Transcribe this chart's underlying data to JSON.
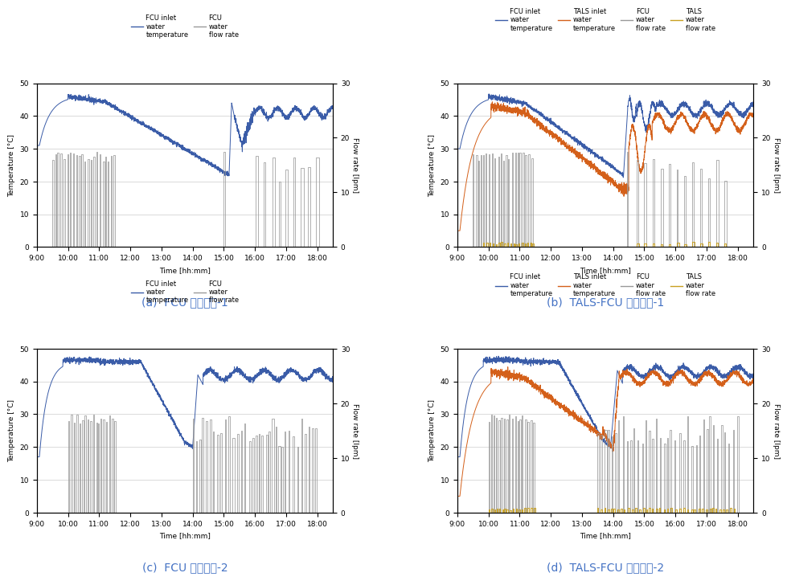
{
  "subplots": [
    {
      "title": "(a)  FCU 단독운전-1",
      "legend": [
        "FCU inlet\nwater\ntemperature",
        "FCU\nwater\nflow rate"
      ],
      "legend_colors": [
        "#3a5ca8",
        "#999999"
      ],
      "xlim": [
        0,
        570
      ],
      "ylim_left": [
        0,
        50
      ],
      "ylim_right": [
        0,
        30
      ],
      "xtick_labels": [
        "9:00",
        "10:00",
        "11:00",
        "12:00",
        "13:00",
        "14:00",
        "15:00",
        "16:00",
        "17:00",
        "18:00"
      ],
      "xtick_positions": [
        0,
        60,
        120,
        180,
        240,
        300,
        360,
        420,
        480,
        540
      ],
      "ytick_left": [
        0,
        10,
        20,
        30,
        40,
        50
      ],
      "ytick_right": [
        0,
        10,
        20,
        30
      ],
      "temp_color": "#3a5ca8",
      "flow_color": "#999999",
      "has_tals": false
    },
    {
      "title": "(b)  TALS-FCU 병용운전-1",
      "legend": [
        "FCU inlet\nwater\ntemperature",
        "TALS inlet\nwater\ntemperature",
        "FCU\nwater\nflow rate",
        "TALS\nwater\nflow rate"
      ],
      "legend_colors": [
        "#3a5ca8",
        "#d4601a",
        "#999999",
        "#c8a020"
      ],
      "xlim": [
        0,
        570
      ],
      "ylim_left": [
        0,
        50
      ],
      "ylim_right": [
        0,
        30
      ],
      "xtick_labels": [
        "9:00",
        "10:00",
        "11:00",
        "12:00",
        "13:00",
        "14:00",
        "15:00",
        "16:00",
        "17:00",
        "18:00"
      ],
      "xtick_positions": [
        0,
        60,
        120,
        180,
        240,
        300,
        360,
        420,
        480,
        540
      ],
      "ytick_left": [
        0,
        10,
        20,
        30,
        40,
        50
      ],
      "ytick_right": [
        0,
        10,
        20,
        30
      ],
      "temp_color": "#3a5ca8",
      "flow_color": "#999999",
      "tals_temp_color": "#d4601a",
      "tals_flow_color": "#c8a020",
      "has_tals": true
    },
    {
      "title": "(c)  FCU 단독운전-2",
      "legend": [
        "FCU inlet\nwater\ntemperature",
        "FCU\nwater\nflow rate"
      ],
      "legend_colors": [
        "#3a5ca8",
        "#999999"
      ],
      "xlim": [
        0,
        570
      ],
      "ylim_left": [
        0,
        50
      ],
      "ylim_right": [
        0,
        30
      ],
      "xtick_labels": [
        "9:00",
        "10:00",
        "11:00",
        "12:00",
        "13:00",
        "14:00",
        "15:00",
        "16:00",
        "17:00",
        "18:00"
      ],
      "xtick_positions": [
        0,
        60,
        120,
        180,
        240,
        300,
        360,
        420,
        480,
        540
      ],
      "ytick_left": [
        0,
        10,
        20,
        30,
        40,
        50
      ],
      "ytick_right": [
        0,
        10,
        20,
        30
      ],
      "temp_color": "#3a5ca8",
      "flow_color": "#999999",
      "has_tals": false
    },
    {
      "title": "(d)  TALS-FCU 병용운전-2",
      "legend": [
        "FCU inlet\nwater\ntemperature",
        "TALS inlet\nwater\ntemperature",
        "FCU\nwater\nflow rate",
        "TALS\nwater\nflow rate"
      ],
      "legend_colors": [
        "#3a5ca8",
        "#d4601a",
        "#999999",
        "#c8a020"
      ],
      "xlim": [
        0,
        570
      ],
      "ylim_left": [
        0,
        50
      ],
      "ylim_right": [
        0,
        30
      ],
      "xtick_labels": [
        "9:00",
        "10:00",
        "11:00",
        "12:00",
        "13:00",
        "14:00",
        "15:00",
        "16:00",
        "17:00",
        "18:00"
      ],
      "xtick_positions": [
        0,
        60,
        120,
        180,
        240,
        300,
        360,
        420,
        480,
        540
      ],
      "ytick_left": [
        0,
        10,
        20,
        30,
        40,
        50
      ],
      "ytick_right": [
        0,
        10,
        20,
        30
      ],
      "temp_color": "#3a5ca8",
      "flow_color": "#999999",
      "tals_temp_color": "#d4601a",
      "tals_flow_color": "#c8a020",
      "has_tals": true
    }
  ],
  "xlabel": "Time [hh:mm]",
  "ylabel_left": "Temperature [°C]",
  "ylabel_right": "Flow rate [lpm]",
  "background_color": "#ffffff",
  "title_fontsize": 10,
  "axis_fontsize": 6.5,
  "label_fontsize": 6.5,
  "legend_fontsize": 6
}
